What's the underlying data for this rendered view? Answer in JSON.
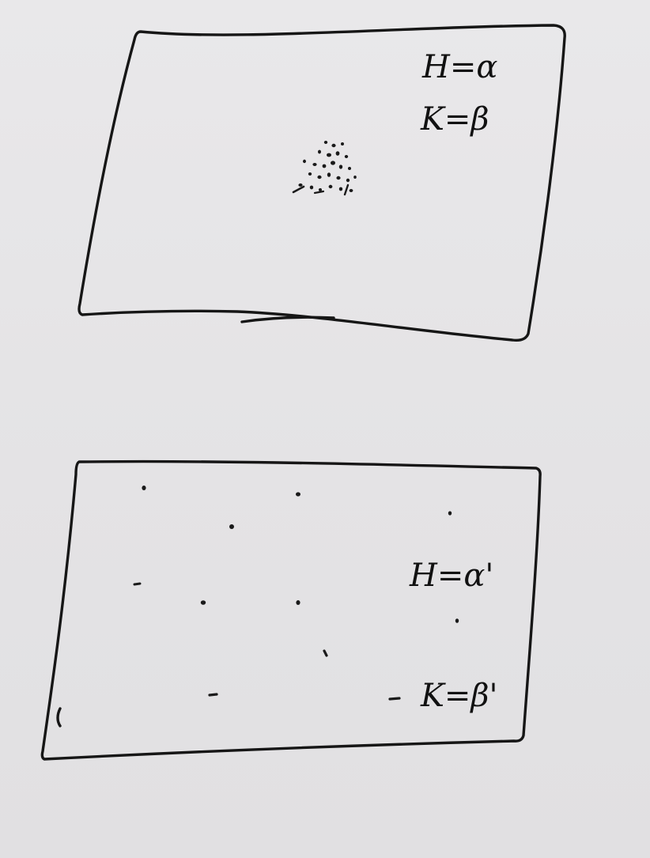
{
  "panels": [
    {
      "h_label": "H=α",
      "k_label": "K=β"
    },
    {
      "h_label": "H=α'",
      "k_label": "K=β'"
    }
  ]
}
